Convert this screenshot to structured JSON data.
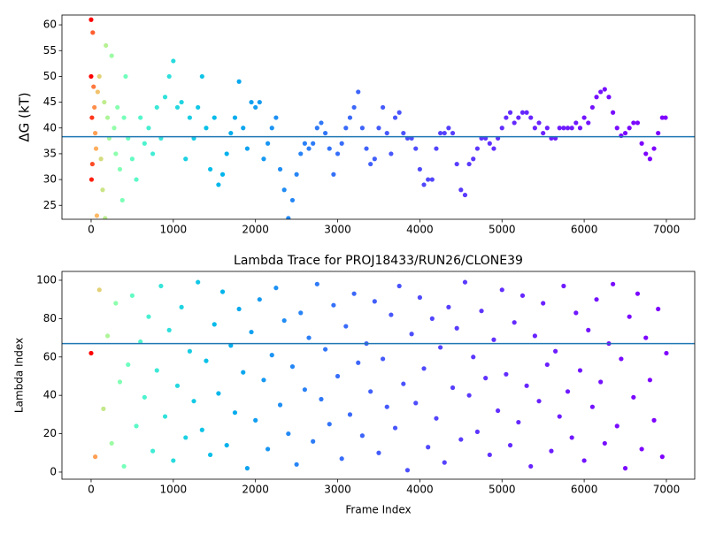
{
  "chart_data": [
    {
      "type": "scatter",
      "ylabel": "ΔG (kT)",
      "xlim": [
        -355,
        7345
      ],
      "ylim": [
        22.3,
        61.9
      ],
      "xticks": [
        0,
        1000,
        2000,
        3000,
        4000,
        5000,
        6000,
        7000
      ],
      "yticks": [
        25,
        30,
        35,
        40,
        45,
        50,
        55,
        60
      ],
      "hline": 38.3,
      "hline_color": "#1f77b4",
      "colormap": "rainbow",
      "color_by": "x",
      "color_scale": "log",
      "color_reversed": true,
      "x": [
        0,
        0,
        10,
        20,
        5,
        15,
        30,
        40,
        50,
        60,
        70,
        80,
        100,
        120,
        140,
        160,
        170,
        180,
        200,
        220,
        250,
        280,
        300,
        320,
        350,
        380,
        400,
        420,
        450,
        500,
        550,
        600,
        650,
        700,
        750,
        800,
        850,
        900,
        950,
        1000,
        1050,
        1100,
        1150,
        1200,
        1250,
        1300,
        1350,
        1400,
        1450,
        1500,
        1550,
        1600,
        1650,
        1700,
        1750,
        1800,
        1850,
        1900,
        1950,
        2000,
        2050,
        2100,
        2150,
        2200,
        2250,
        2300,
        2350,
        2400,
        2450,
        2500,
        2550,
        2600,
        2650,
        2700,
        2750,
        2800,
        2850,
        2900,
        2950,
        3000,
        3050,
        3100,
        3150,
        3200,
        3250,
        3300,
        3350,
        3400,
        3450,
        3500,
        3550,
        3600,
        3650,
        3700,
        3750,
        3800,
        3850,
        3900,
        3950,
        4000,
        4050,
        4100,
        4150,
        4200,
        4250,
        4300,
        4350,
        4400,
        4450,
        4500,
        4550,
        4600,
        4650,
        4700,
        4750,
        4800,
        4850,
        4900,
        4950,
        5000,
        5050,
        5100,
        5150,
        5200,
        5250,
        5300,
        5350,
        5400,
        5450,
        5500,
        5550,
        5600,
        5650,
        5700,
        5750,
        5800,
        5850,
        5900,
        5950,
        6000,
        6050,
        6100,
        6150,
        6200,
        6250,
        6300,
        6350,
        6400,
        6450,
        6500,
        6550,
        6600,
        6650,
        6700,
        6750,
        6800,
        6850,
        6900,
        6950,
        6990
      ],
      "values": [
        61,
        50,
        42,
        58.5,
        30,
        33,
        48,
        44,
        39,
        36,
        23,
        47,
        50,
        34,
        28,
        45,
        22.5,
        56,
        42,
        38,
        54,
        40,
        35,
        44,
        32,
        26,
        42,
        50,
        38,
        34,
        30,
        42,
        37,
        40,
        35,
        44,
        38,
        46,
        50,
        53,
        44,
        45,
        34,
        42,
        38,
        44,
        50,
        40,
        32,
        42,
        29,
        31,
        35,
        39,
        42,
        49,
        40,
        36,
        45,
        44,
        45,
        34,
        37,
        40,
        42,
        32,
        28,
        22.5,
        26,
        31,
        35,
        37,
        36,
        37,
        40,
        41,
        39,
        36,
        31,
        35,
        37,
        40,
        42,
        44,
        47,
        40,
        36,
        33,
        34,
        40,
        44,
        39,
        35,
        42,
        43,
        39,
        38,
        38,
        36,
        32,
        29,
        30,
        30,
        36,
        39,
        39,
        40,
        39,
        33,
        28,
        27,
        33,
        34,
        36,
        38,
        38,
        37,
        36,
        38,
        40,
        42,
        43,
        41,
        42,
        43,
        43,
        42,
        40,
        41,
        39,
        40,
        38,
        38,
        40,
        40,
        40,
        40,
        41,
        40,
        42,
        41,
        44,
        46,
        47,
        47.5,
        46,
        43,
        40,
        38.5,
        39,
        40,
        41,
        41,
        37,
        35,
        34,
        36,
        39,
        42,
        42
      ]
    },
    {
      "type": "scatter",
      "title": "Lambda Trace for PROJ18433/RUN26/CLONE39",
      "xlabel": "Frame Index",
      "ylabel": "Lambda Index",
      "xlim": [
        -355,
        7345
      ],
      "ylim": [
        -3.7,
        104.6
      ],
      "xticks": [
        0,
        1000,
        2000,
        3000,
        4000,
        5000,
        6000,
        7000
      ],
      "yticks": [
        0,
        20,
        40,
        60,
        80,
        100
      ],
      "hline": 67,
      "hline_color": "#1f77b4",
      "colormap": "rainbow",
      "color_by": "x",
      "color_scale": "log",
      "color_reversed": true,
      "x": [
        0,
        50,
        100,
        150,
        200,
        250,
        300,
        350,
        400,
        450,
        500,
        550,
        600,
        650,
        700,
        750,
        800,
        850,
        900,
        950,
        1000,
        1050,
        1100,
        1150,
        1200,
        1250,
        1300,
        1350,
        1400,
        1450,
        1500,
        1550,
        1600,
        1650,
        1700,
        1750,
        1800,
        1850,
        1900,
        1950,
        2000,
        2050,
        2100,
        2150,
        2200,
        2250,
        2300,
        2350,
        2400,
        2450,
        2500,
        2550,
        2600,
        2650,
        2700,
        2750,
        2800,
        2850,
        2900,
        2950,
        3000,
        3050,
        3100,
        3150,
        3200,
        3250,
        3300,
        3350,
        3400,
        3450,
        3500,
        3550,
        3600,
        3650,
        3700,
        3750,
        3800,
        3850,
        3900,
        3950,
        4000,
        4050,
        4100,
        4150,
        4200,
        4250,
        4300,
        4350,
        4400,
        4450,
        4500,
        4550,
        4600,
        4650,
        4700,
        4750,
        4800,
        4850,
        4900,
        4950,
        5000,
        5050,
        5100,
        5150,
        5200,
        5250,
        5300,
        5350,
        5400,
        5450,
        5500,
        5550,
        5600,
        5650,
        5700,
        5750,
        5800,
        5850,
        5900,
        5950,
        6000,
        6050,
        6100,
        6150,
        6200,
        6250,
        6300,
        6350,
        6400,
        6450,
        6500,
        6550,
        6600,
        6650,
        6700,
        6750,
        6800,
        6850,
        6900,
        6950,
        7000
      ],
      "values": [
        62,
        8,
        95,
        33,
        71,
        15,
        88,
        47,
        3,
        56,
        92,
        24,
        68,
        39,
        81,
        11,
        53,
        97,
        29,
        74,
        6,
        45,
        86,
        18,
        63,
        37,
        99,
        22,
        58,
        9,
        77,
        41,
        94,
        14,
        66,
        31,
        85,
        52,
        2,
        73,
        27,
        90,
        48,
        12,
        61,
        96,
        35,
        79,
        20,
        55,
        4,
        83,
        43,
        70,
        16,
        98,
        38,
        64,
        25,
        87,
        50,
        7,
        76,
        30,
        93,
        57,
        19,
        67,
        42,
        89,
        10,
        59,
        34,
        82,
        23,
        97,
        46,
        1,
        72,
        36,
        91,
        54,
        13,
        80,
        28,
        65,
        5,
        86,
        44,
        75,
        17,
        99,
        40,
        60,
        21,
        84,
        49,
        9,
        69,
        32,
        95,
        51,
        14,
        78,
        26,
        92,
        45,
        3,
        71,
        37,
        88,
        56,
        11,
        63,
        29,
        97,
        42,
        18,
        83,
        53,
        6,
        74,
        34,
        90,
        47,
        15,
        67,
        98,
        24,
        59,
        2,
        81,
        39,
        93,
        12,
        70,
        48,
        27,
        85,
        8,
        62
      ]
    }
  ]
}
